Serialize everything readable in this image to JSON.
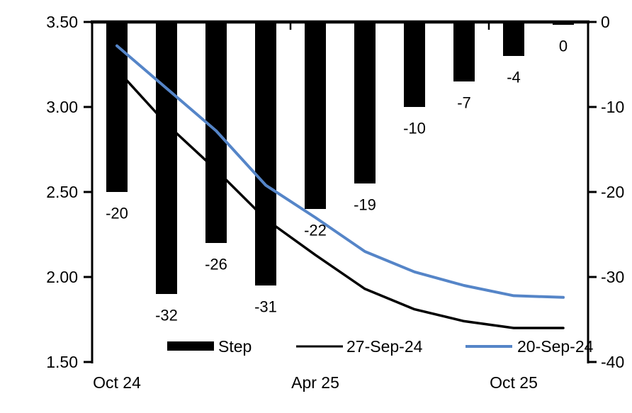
{
  "chart_data": {
    "type": "combo-bar-line",
    "title": "",
    "n_categories": 10,
    "x_axis": {
      "tick_labels": [
        "Oct 24",
        "Apr 25",
        "Oct 25"
      ],
      "tick_category_index": [
        0,
        4,
        8
      ],
      "boundary_tick_index": [
        0,
        4,
        8
      ]
    },
    "left_axis": {
      "min": 1.5,
      "max": 3.5,
      "step": 0.5,
      "ticks": [
        "3.50",
        "3.00",
        "2.50",
        "2.00",
        "1.50"
      ]
    },
    "right_axis": {
      "min": -40,
      "max": 0,
      "step": 10,
      "ticks": [
        "0",
        "-10",
        "-20",
        "-30",
        "-40"
      ]
    },
    "bars": {
      "name": "Step",
      "axis": "right",
      "color": "#000000",
      "values": [
        -20,
        -32,
        -26,
        -31,
        -22,
        -19,
        -10,
        -7,
        -4,
        0
      ],
      "labels": [
        "-20",
        "-32",
        "-26",
        "-31",
        "-22",
        "-19",
        "-10",
        "-7",
        "-4",
        "0"
      ]
    },
    "series": [
      {
        "name": "27-Sep-24",
        "axis": "left",
        "color": "#000000",
        "values": [
          3.22,
          2.9,
          2.63,
          2.34,
          2.13,
          1.93,
          1.81,
          1.74,
          1.7,
          1.7
        ]
      },
      {
        "name": "20-Sep-24",
        "axis": "left",
        "color": "#5585C8",
        "values": [
          3.36,
          3.11,
          2.86,
          2.54,
          2.35,
          2.15,
          2.03,
          1.95,
          1.89,
          1.88
        ]
      }
    ],
    "legend": {
      "position": "bottom-inside",
      "items": [
        {
          "label": "Step",
          "swatch": "bar",
          "color": "#000000"
        },
        {
          "label": "27-Sep-24",
          "swatch": "line",
          "color": "#000000"
        },
        {
          "label": "20-Sep-24",
          "swatch": "line",
          "color": "#5585C8"
        }
      ]
    },
    "grid": false
  }
}
